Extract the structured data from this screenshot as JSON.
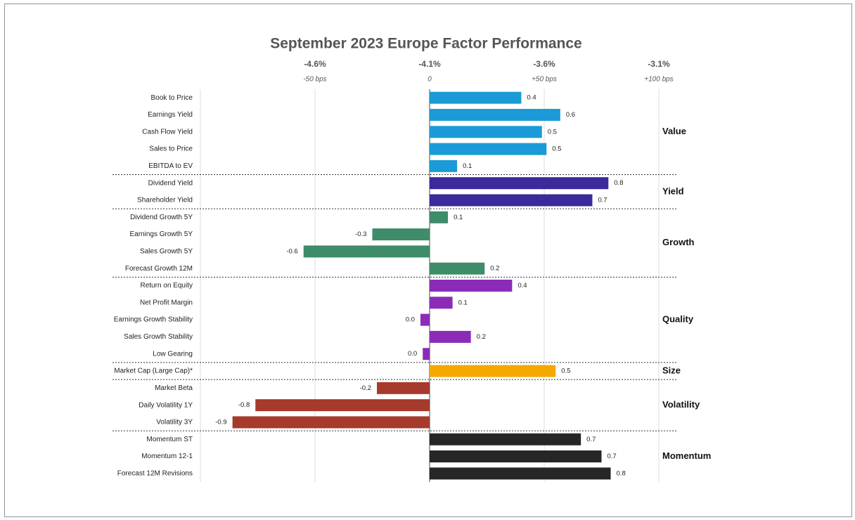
{
  "chart_data": {
    "type": "bar",
    "orientation": "horizontal",
    "title": "September 2023 Europe Factor Performance",
    "xlim": [
      -1.0,
      1.0
    ],
    "xticks": [
      {
        "value": -0.5,
        "label": "-4.6%"
      },
      {
        "value": 0,
        "label": "-4.1%"
      },
      {
        "value": 0.5,
        "label": "-3.6%"
      },
      {
        "value": 1.0,
        "label": "-3.1%"
      }
    ],
    "xtick_sublabels": [
      "-50 bps",
      "0",
      "+50 bps",
      "+100 bps"
    ],
    "grid": true,
    "groups": [
      {
        "name": "Value",
        "color": "#1a9bd7",
        "categories": [
          "Book to Price",
          "Earnings Yield",
          "Cash Flow Yield",
          "Sales to Price",
          "EBITDA to EV"
        ],
        "values": [
          0.4,
          0.57,
          0.49,
          0.51,
          0.12
        ],
        "value_labels": [
          "0.4",
          "0.6",
          "0.5",
          "0.5",
          "0.1"
        ]
      },
      {
        "name": "Yield",
        "color": "#3b2a9c",
        "categories": [
          "Dividend Yield",
          "Shareholder Yield"
        ],
        "values": [
          0.78,
          0.71
        ],
        "value_labels": [
          "0.8",
          "0.7"
        ]
      },
      {
        "name": "Growth",
        "color": "#3e8c6a",
        "categories": [
          "Dividend Growth 5Y",
          "Earnings Growth 5Y",
          "Sales Growth 5Y",
          "Forecast Growth 12M"
        ],
        "values": [
          0.08,
          -0.25,
          -0.55,
          0.24
        ],
        "value_labels": [
          "0.1",
          "-0.3",
          "-0.6",
          "0.2"
        ]
      },
      {
        "name": "Quality",
        "color": "#8a2cb8",
        "categories": [
          "Return on Equity",
          "Net Profit Margin",
          "Earnings Growth Stability",
          "Sales Growth Stability",
          "Low Gearing"
        ],
        "values": [
          0.36,
          0.1,
          -0.04,
          0.18,
          -0.03
        ],
        "value_labels": [
          "0.4",
          "0.1",
          "0.0",
          "0.2",
          "0.0"
        ]
      },
      {
        "name": "Size",
        "color": "#f5a800",
        "categories": [
          "Market Cap (Large Cap)*"
        ],
        "values": [
          0.55
        ],
        "value_labels": [
          "0.5"
        ]
      },
      {
        "name": "Volatility",
        "color": "#a63a2c",
        "categories": [
          "Market Beta",
          "Daily Volatility 1Y",
          "Volatility 3Y"
        ],
        "values": [
          -0.23,
          -0.76,
          -0.86
        ],
        "value_labels": [
          "-0.2",
          "-0.8",
          "-0.9"
        ]
      },
      {
        "name": "Momentum",
        "color": "#262626",
        "categories": [
          "Momentum ST",
          "Momentum 12-1",
          "Forecast 12M Revisions"
        ],
        "values": [
          0.66,
          0.75,
          0.79
        ],
        "value_labels": [
          "0.7",
          "0.7",
          "0.8"
        ]
      }
    ]
  }
}
